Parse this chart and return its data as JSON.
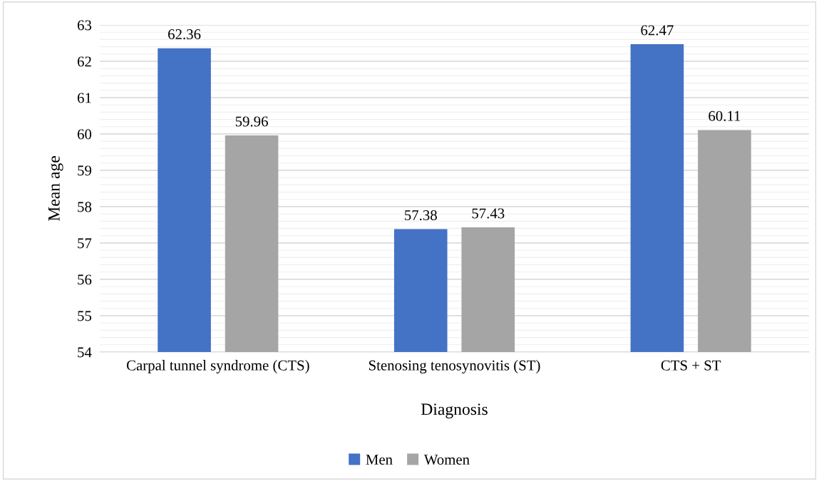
{
  "chart_data": {
    "type": "bar",
    "xlabel": "Diagnosis",
    "ylabel": "Mean age",
    "categories": [
      "Carpal tunnel syndrome (CTS)",
      "Stenosing tenosynovitis (ST)",
      "CTS + ST"
    ],
    "series": [
      {
        "name": "Men",
        "color": "#4472c4",
        "values": [
          62.36,
          57.38,
          62.47
        ]
      },
      {
        "name": "Women",
        "color": "#a5a5a5",
        "values": [
          59.96,
          57.43,
          60.11
        ]
      }
    ],
    "ylim": [
      54,
      63
    ],
    "yticks": [
      54,
      55,
      56,
      57,
      58,
      59,
      60,
      61,
      62,
      63
    ],
    "grid": "y",
    "legend": "bottom",
    "data_labels": true
  }
}
